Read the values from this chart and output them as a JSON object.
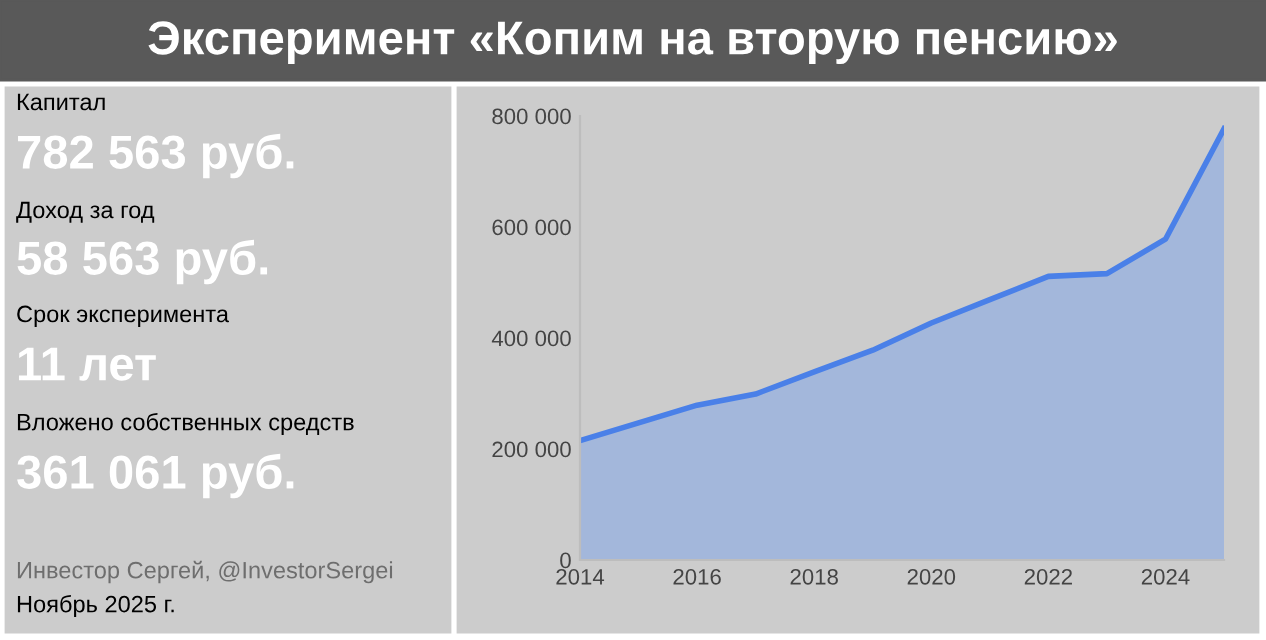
{
  "chart_data": {
    "type": "area",
    "title": "Эксперимент «Копим на вторую пенсию»",
    "x": [
      2014,
      2015,
      2016,
      2017,
      2018,
      2019,
      2020,
      2021,
      2022,
      2023,
      2024,
      2025
    ],
    "series": [
      {
        "color": "#4a80e8",
        "values": [
          215000,
          247000,
          279000,
          299000,
          339000,
          378000,
          427000,
          469000,
          511000,
          516000,
          578000,
          777000
        ]
      }
    ],
    "xlim": [
      2014,
      2025
    ],
    "xticks": [
      2014,
      2016,
      2018,
      2020,
      2022,
      2024
    ],
    "ylim": [
      0,
      800000
    ],
    "yticks": [
      {
        "value": 0,
        "label": "0"
      },
      {
        "value": 200000,
        "label": "200 000"
      },
      {
        "value": 400000,
        "label": "400 000"
      },
      {
        "value": 600000,
        "label": "600 000"
      },
      {
        "value": 800000,
        "label": "800 000"
      }
    ],
    "grid": false,
    "legend": false,
    "annotations": [
      "Капитал",
      "782 563 руб.",
      "Доход за год",
      "58 563 руб.",
      "Срок эксперимента",
      "11 лет",
      "Вложено собственных средств",
      "361 061 руб.",
      "Инвестор Сергей, @InvestorSergei",
      "Ноябрь 2025 г."
    ]
  }
}
